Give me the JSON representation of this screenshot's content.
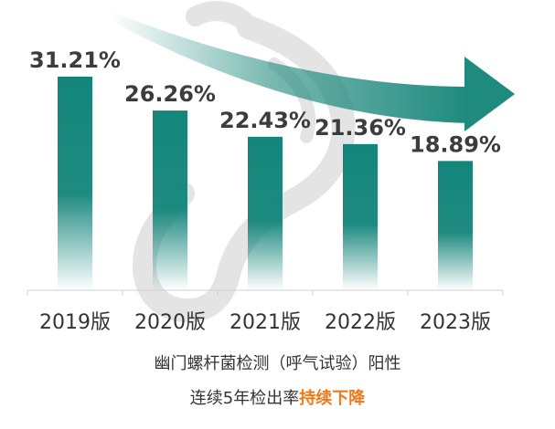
{
  "chart_data": {
    "type": "bar",
    "categories": [
      "2019版",
      "2020版",
      "2021版",
      "2022版",
      "2023版"
    ],
    "values": [
      31.21,
      26.26,
      22.43,
      21.36,
      18.89
    ],
    "value_labels": [
      "31.21%",
      "26.26%",
      "22.43%",
      "21.36%",
      "18.89%"
    ],
    "ylim": [
      0,
      35
    ],
    "grid": false,
    "legend": "none",
    "trend_arrow": "down"
  },
  "caption": {
    "line1": "幽门螺杆菌检测（呼气试验）阳性",
    "line2_prefix": "连续5年检出率",
    "line2_highlight": "持续下降"
  },
  "colors": {
    "bar": "#13857a",
    "arrow": "#1f8a7e",
    "highlight": "#f07a1a",
    "watermark": "#e6e6e6"
  }
}
